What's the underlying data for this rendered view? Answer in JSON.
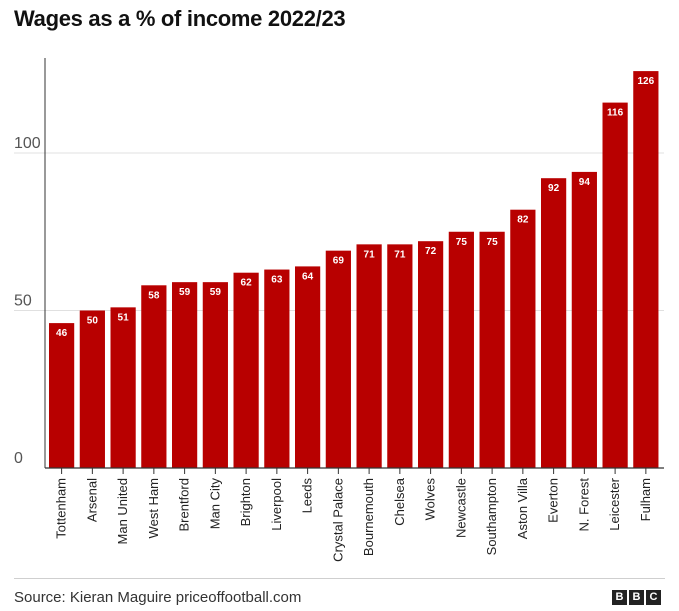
{
  "chart_data": {
    "type": "bar",
    "title": "Wages as a % of income 2022/23",
    "categories": [
      "Tottenham",
      "Arsenal",
      "Man United",
      "West Ham",
      "Brentford",
      "Man City",
      "Brighton",
      "Liverpool",
      "Leeds",
      "Crystal Palace",
      "Bournemouth",
      "Chelsea",
      "Wolves",
      "Newcastle",
      "Southampton",
      "Aston Villa",
      "Everton",
      "N. Forest",
      "Leicester",
      "Fulham"
    ],
    "values": [
      46,
      50,
      51,
      58,
      59,
      59,
      62,
      63,
      64,
      69,
      71,
      71,
      72,
      75,
      75,
      82,
      92,
      94,
      116,
      126
    ],
    "yticks": [
      0,
      50,
      100
    ],
    "ylim": [
      0,
      130
    ],
    "xlabel": "",
    "ylabel": "",
    "grid": true,
    "bar_color": "#b80000"
  },
  "footer": {
    "source": "Source: Kieran Maguire priceoffootball.com",
    "logo_letters": [
      "B",
      "B",
      "C"
    ]
  }
}
